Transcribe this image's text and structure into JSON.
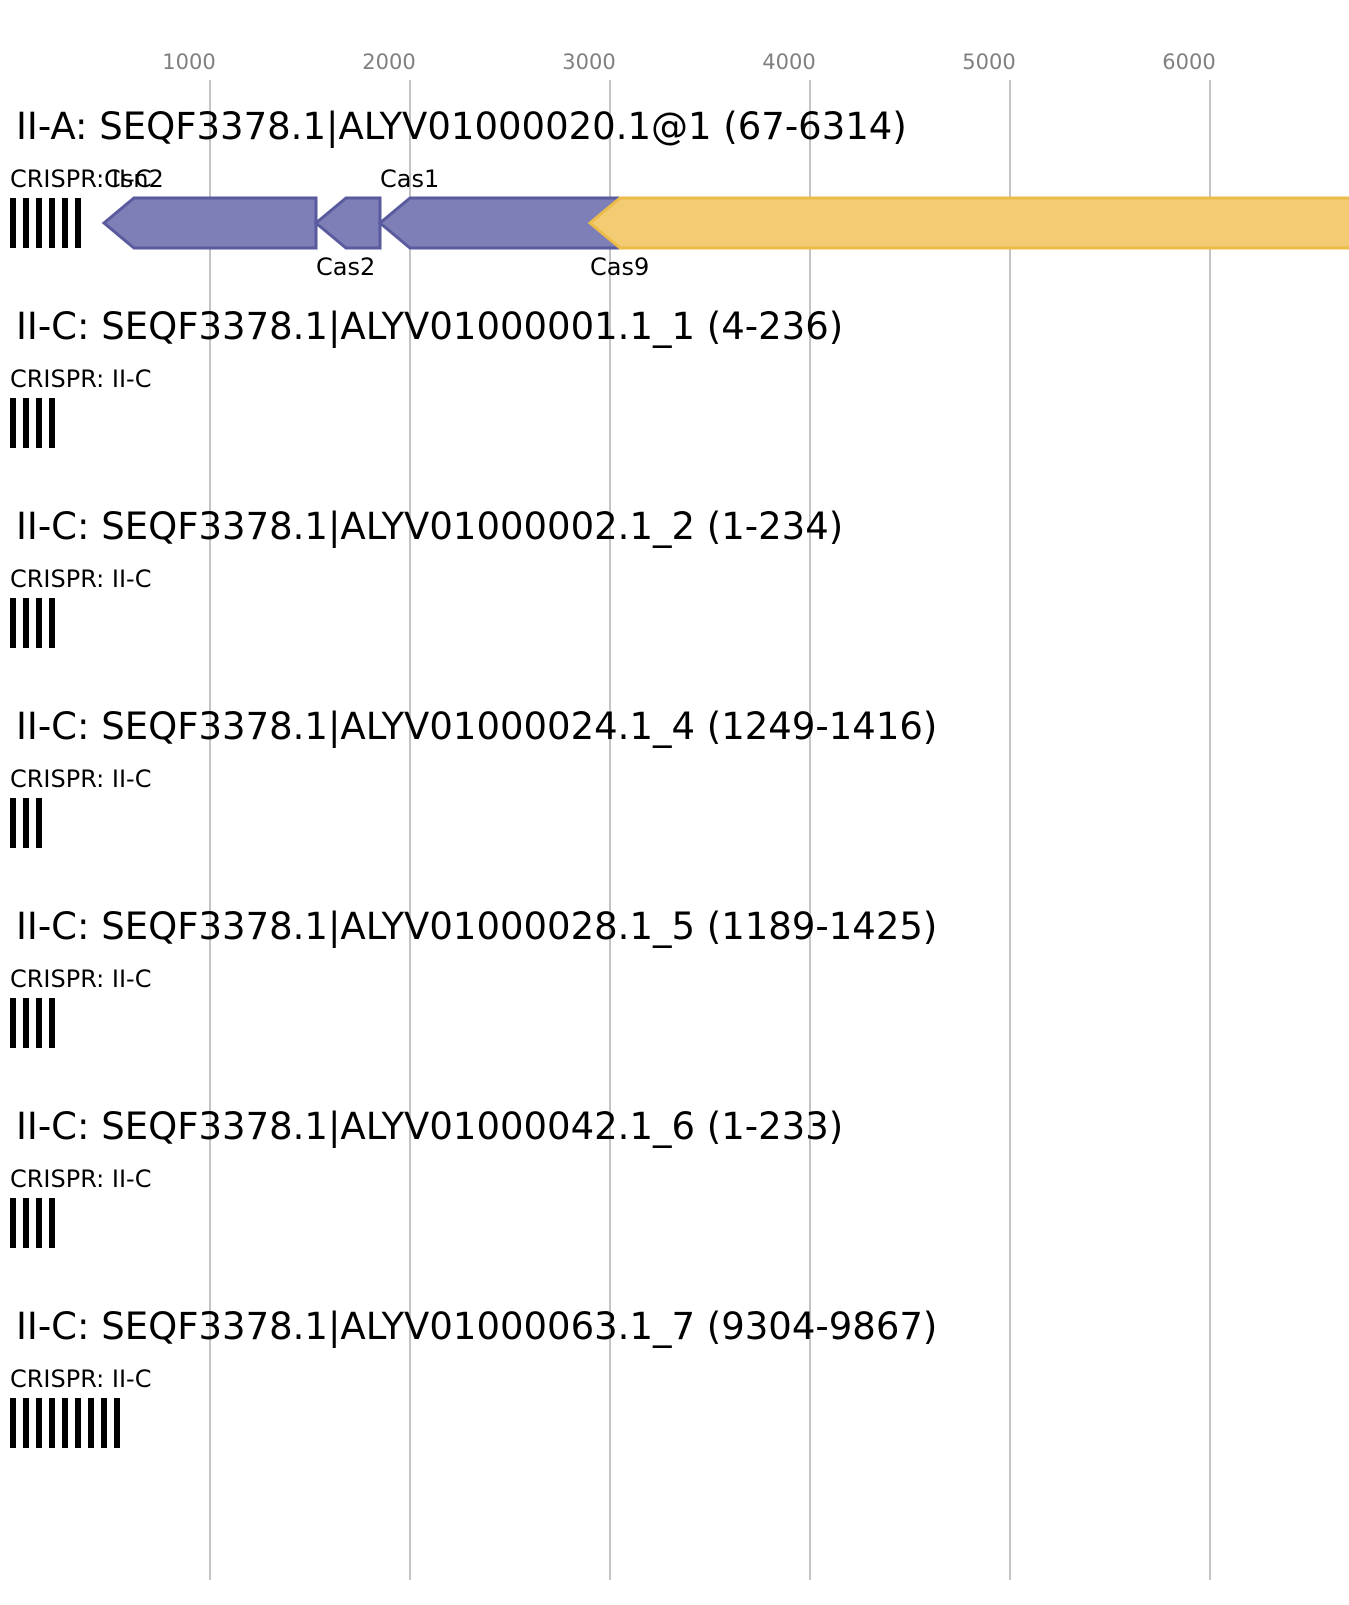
{
  "axis": {
    "ticks": [
      "1000",
      "2000",
      "3000",
      "4000",
      "5000",
      "6000"
    ]
  },
  "colors": {
    "adaptation": "#7f7fb7",
    "adaptation_stroke": "#5a5a9e",
    "effector": "#f2cb73",
    "effector_stroke": "#ecbc4a",
    "grid": "#c4c4c4",
    "tick": "#808080"
  },
  "loci": [
    {
      "title": "II-A: SEQF3378.1|ALYV01000020.1@1 (67-6314)",
      "crispr": {
        "label": "CRISPR: II-C",
        "repeats": 6
      },
      "genes": [
        {
          "name": "Csn2",
          "start": 470,
          "end": 1530,
          "strand": "-",
          "kind": "adaptation",
          "label_pos": "above"
        },
        {
          "name": "Cas2",
          "start": 1530,
          "end": 1850,
          "strand": "-",
          "kind": "adaptation",
          "label_pos": "below"
        },
        {
          "name": "Cas1",
          "start": 1850,
          "end": 3080,
          "strand": "-",
          "kind": "adaptation",
          "label_pos": "above"
        },
        {
          "name": "Cas9",
          "start": 2900,
          "end": 6740,
          "strand": "-",
          "kind": "effector",
          "label_pos": "below"
        }
      ]
    },
    {
      "title": "II-C: SEQF3378.1|ALYV01000001.1_1 (4-236)",
      "crispr": {
        "label": "CRISPR: II-C",
        "repeats": 4
      },
      "genes": []
    },
    {
      "title": "II-C: SEQF3378.1|ALYV01000002.1_2 (1-234)",
      "crispr": {
        "label": "CRISPR: II-C",
        "repeats": 4
      },
      "genes": []
    },
    {
      "title": "II-C: SEQF3378.1|ALYV01000024.1_4 (1249-1416)",
      "crispr": {
        "label": "CRISPR: II-C",
        "repeats": 3
      },
      "genes": []
    },
    {
      "title": "II-C: SEQF3378.1|ALYV01000028.1_5 (1189-1425)",
      "crispr": {
        "label": "CRISPR: II-C",
        "repeats": 4
      },
      "genes": []
    },
    {
      "title": "II-C: SEQF3378.1|ALYV01000042.1_6 (1-233)",
      "crispr": {
        "label": "CRISPR: II-C",
        "repeats": 4
      },
      "genes": []
    },
    {
      "title": "II-C: SEQF3378.1|ALYV01000063.1_7 (9304-9867)",
      "crispr": {
        "label": "CRISPR: II-C",
        "repeats": 9
      },
      "genes": []
    }
  ]
}
